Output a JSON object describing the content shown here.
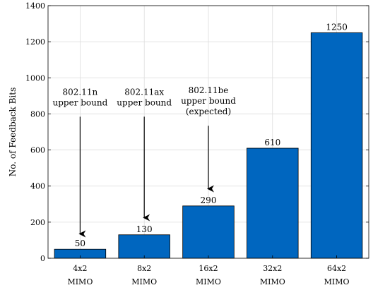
{
  "chart_data": {
    "type": "bar",
    "categories": [
      [
        "4x2",
        "MIMO"
      ],
      [
        "8x2",
        "MIMO"
      ],
      [
        "16x2",
        "MIMO"
      ],
      [
        "32x2",
        "MIMO"
      ],
      [
        "64x2",
        "MIMO"
      ]
    ],
    "values": [
      50,
      130,
      290,
      610,
      1250
    ],
    "data_labels": [
      "50",
      "130",
      "290",
      "610",
      "1250"
    ],
    "ylabel": "No. of Feedback Bits",
    "ylim": [
      0,
      1400
    ],
    "yticks": [
      0,
      200,
      400,
      600,
      800,
      1000,
      1200,
      1400
    ],
    "grid": true,
    "bar_color": "#0066bf",
    "annotations": [
      {
        "lines": [
          "802.11n",
          "upper bound"
        ],
        "category_index": 0,
        "arrow_from": 800,
        "arrow_to": 135
      },
      {
        "lines": [
          "802.11ax",
          "upper bound"
        ],
        "category_index": 1,
        "arrow_from": 800,
        "arrow_to": 225
      },
      {
        "lines": [
          "802.11be",
          "upper bound",
          "(expected)"
        ],
        "category_index": 2,
        "arrow_from": 750,
        "arrow_to": 385
      }
    ]
  }
}
